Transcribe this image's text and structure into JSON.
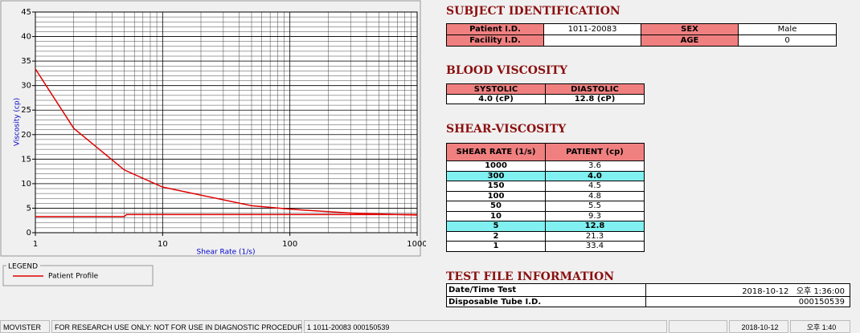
{
  "chart_data": {
    "type": "line",
    "xlabel": "Shear Rate (1/s)",
    "ylabel": "Viscosity (cp)",
    "xscale": "log",
    "xlim": [
      1,
      1000
    ],
    "xticks": [
      1,
      10,
      100,
      1000
    ],
    "ylim": [
      0,
      45
    ],
    "yticks": [
      0,
      5,
      10,
      15,
      20,
      25,
      30,
      35,
      40,
      45
    ],
    "grid": true,
    "legend_title": "LEGEND",
    "legend": "bottom-left",
    "series": [
      {
        "name": "Patient Profile",
        "color": "#e00000",
        "x": [
          1,
          2,
          5,
          10,
          50,
          100,
          150,
          300,
          1000
        ],
        "values": [
          33.4,
          21.3,
          12.8,
          9.3,
          5.5,
          4.8,
          4.5,
          4.0,
          3.6
        ]
      },
      {
        "color": "#e00000",
        "x": [
          1,
          5,
          5.2,
          1000
        ],
        "values": [
          3.3,
          3.3,
          3.7,
          3.7
        ]
      }
    ]
  },
  "subject": {
    "title": "SUBJECT IDENTIFICATION",
    "patient_id_label": "Patient I.D.",
    "patient_id": "1011-20083",
    "facility_id_label": "Facility I.D.",
    "sex_label": "SEX",
    "sex": "Male",
    "age_label": "AGE",
    "age": "0"
  },
  "blood_viscosity": {
    "title": "BLOOD VISCOSITY",
    "headers": [
      "SYSTOLIC",
      "DIASTOLIC"
    ],
    "values": [
      "4.0 (cP)",
      "12.8 (cP)"
    ]
  },
  "shear_viscosity": {
    "title": "SHEAR-VISCOSITY",
    "headers": [
      "SHEAR RATE (1/s)",
      "PATIENT (cp)"
    ],
    "rows": [
      {
        "rate": "1000",
        "value": "3.6"
      },
      {
        "rate": "300",
        "value": "4.0",
        "highlight": true
      },
      {
        "rate": "150",
        "value": "4.5"
      },
      {
        "rate": "100",
        "value": "4.8"
      },
      {
        "rate": "50",
        "value": "5.5"
      },
      {
        "rate": "10",
        "value": "9.3"
      },
      {
        "rate": "5",
        "value": "12.8",
        "highlight": true
      },
      {
        "rate": "2",
        "value": "21.3"
      },
      {
        "rate": "1",
        "value": "33.4"
      }
    ]
  },
  "test_file": {
    "title": "TEST FILE INFORMATION",
    "date_label": "Date/Time Test",
    "date": "2018-10-12",
    "time": "오후 1:36:00",
    "tube_label": "Disposable Tube I.D.",
    "tube_id": "000150539"
  },
  "status_bar": {
    "app": "MOVISTER",
    "notice": "FOR RESEARCH USE ONLY: NOT FOR USE IN DIAGNOSTIC PROCEDURES",
    "record": "1  1011-20083  000150539",
    "date": "2018-10-12",
    "time": "오후 1:40"
  }
}
